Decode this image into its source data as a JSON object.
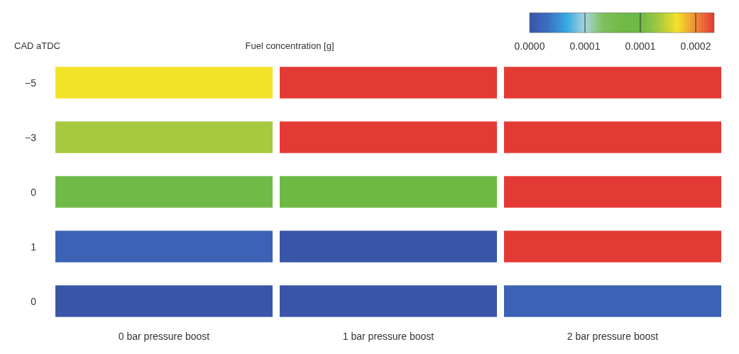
{
  "chart_data": {
    "type": "heatmap",
    "clabel": "Fuel concentration [g]",
    "ylabel": "CAD aTDC",
    "categories": [
      "0 bar pressure boost",
      "1 bar pressure boost",
      "2 bar pressure boost"
    ],
    "y_categories": [
      "−5",
      "−3",
      "0",
      "1",
      "0"
    ],
    "cells": [
      [
        0.00016,
        0.0002,
        0.0002
      ],
      [
        0.00014,
        0.0002,
        0.0002
      ],
      [
        0.0001,
        0.00012,
        0.0002
      ],
      [
        1e-05,
        0,
        0.0002
      ],
      [
        0,
        0,
        1e-05
      ]
    ],
    "clim": [
      0,
      0.0002
    ],
    "cticks": [
      {
        "value": 0,
        "label": "0.0000"
      },
      {
        "value": 6e-05,
        "label": "0.0001"
      },
      {
        "value": 0.00012,
        "label": "0.0001"
      },
      {
        "value": 0.00018,
        "label": "0.0002"
      }
    ]
  }
}
